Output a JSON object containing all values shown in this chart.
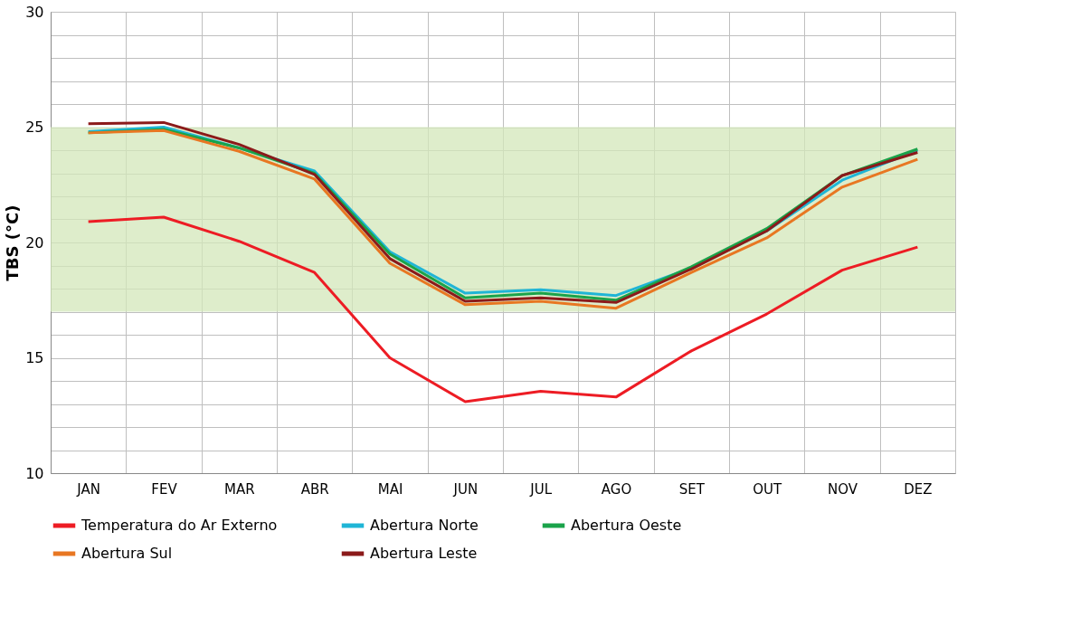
{
  "chart_data": {
    "type": "line",
    "ylabel": "TBS (°C)",
    "categories": [
      "JAN",
      "FEV",
      "MAR",
      "ABR",
      "MAI",
      "JUN",
      "JUL",
      "AGO",
      "SET",
      "OUT",
      "NOV",
      "DEZ"
    ],
    "series": [
      {
        "name": "Temperatura do Ar Externo",
        "color": "#ed1c24",
        "values": [
          20.9,
          21.1,
          20.05,
          18.7,
          15.0,
          13.1,
          13.55,
          13.3,
          15.3,
          16.9,
          18.8,
          19.8
        ]
      },
      {
        "name": "Abertura Norte",
        "color": "#1fb5d6",
        "values": [
          24.8,
          25.0,
          24.1,
          23.1,
          19.6,
          17.8,
          17.95,
          17.7,
          18.9,
          20.5,
          22.7,
          24.0
        ]
      },
      {
        "name": "Abertura Oeste",
        "color": "#1aa34a",
        "values": [
          24.75,
          24.9,
          24.1,
          23.0,
          19.5,
          17.6,
          17.8,
          17.5,
          18.95,
          20.6,
          22.9,
          24.05
        ]
      },
      {
        "name": "Abertura Sul",
        "color": "#e87722",
        "values": [
          24.75,
          24.85,
          23.95,
          22.75,
          19.1,
          17.3,
          17.45,
          17.15,
          18.7,
          20.2,
          22.4,
          23.6
        ]
      },
      {
        "name": "Abertura Leste",
        "color": "#8b1a1a",
        "values": [
          25.15,
          25.2,
          24.25,
          22.95,
          19.3,
          17.45,
          17.6,
          17.4,
          18.85,
          20.5,
          22.9,
          23.9
        ]
      }
    ],
    "ylim": [
      10,
      30
    ],
    "yticks": [
      10,
      {
        "value": 11,
        "label": null
      },
      {
        "value": 12,
        "label": null
      },
      {
        "value": 13,
        "label": null
      },
      {
        "value": 14,
        "label": null
      },
      15,
      {
        "value": 16,
        "label": null
      },
      {
        "value": 17,
        "label": null
      },
      {
        "value": 18,
        "label": null
      },
      {
        "value": 19,
        "label": null
      },
      20,
      {
        "value": 21,
        "label": null
      },
      {
        "value": 22,
        "label": null
      },
      {
        "value": 23,
        "label": null
      },
      {
        "value": 24,
        "label": null
      },
      25,
      {
        "value": 26,
        "label": null
      },
      {
        "value": 27,
        "label": null
      },
      {
        "value": 28,
        "label": null
      },
      {
        "value": 29,
        "label": null
      },
      30
    ],
    "bands": [
      {
        "axis": "y",
        "from": 17,
        "to": 25,
        "color": "#d3e7b9"
      }
    ],
    "grid": true,
    "legend": "bottom",
    "marker": "none",
    "line_style": "solid"
  }
}
